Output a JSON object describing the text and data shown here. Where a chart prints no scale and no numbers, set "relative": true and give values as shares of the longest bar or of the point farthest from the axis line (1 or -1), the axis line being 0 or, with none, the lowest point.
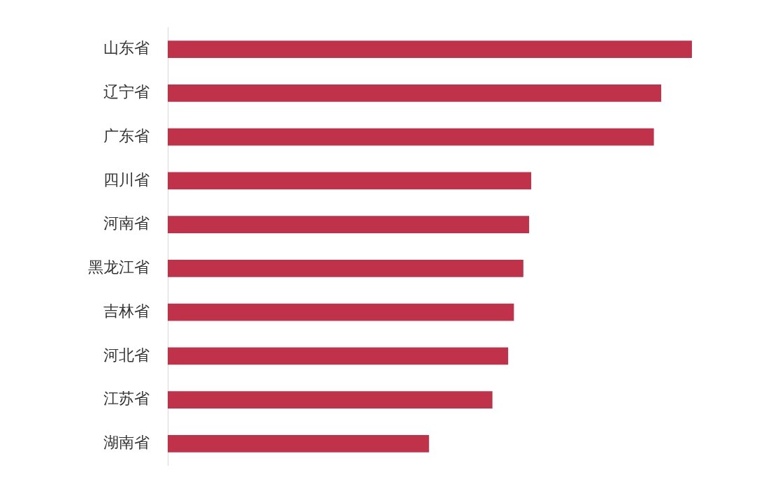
{
  "chart_data": {
    "type": "bar",
    "orientation": "horizontal",
    "relative": true,
    "categories": [
      "山东省",
      "辽宁省",
      "广东省",
      "四川省",
      "河南省",
      "黑龙江省",
      "吉林省",
      "河北省",
      "江苏省",
      "湖南省"
    ],
    "values": [
      1,
      0.941,
      0.927,
      0.693,
      0.689,
      0.678,
      0.66,
      0.649,
      0.619,
      0.498
    ],
    "color": "#c0314a",
    "grid": false,
    "legend": false
  }
}
